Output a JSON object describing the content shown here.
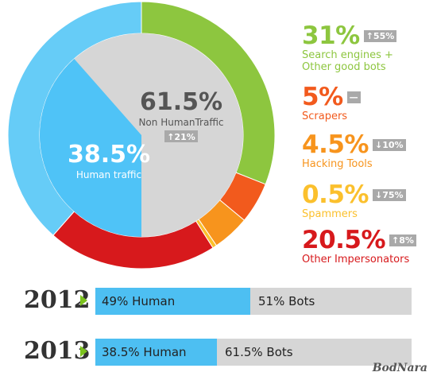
{
  "chart_data": {
    "type": "pie",
    "slices": [
      {
        "name": "Search engines + Other good bots",
        "value": 31,
        "color": "#8dc63f"
      },
      {
        "name": "Scrapers",
        "value": 5,
        "color": "#f25a1d"
      },
      {
        "name": "Hacking Tools",
        "value": 4.5,
        "color": "#f7941d"
      },
      {
        "name": "Spammers",
        "value": 0.5,
        "color": "#fbc02d"
      },
      {
        "name": "Other Impersonators",
        "value": 20.5,
        "color": "#d7191c"
      },
      {
        "name": "Human traffic",
        "value": 38.5,
        "color": "#4fc3f7"
      }
    ],
    "inner": {
      "non_human": {
        "pct": "61.5%",
        "label": "Non HumanTraffic",
        "delta": "↑21%",
        "value": 61.5,
        "color": "#d6d6d6"
      },
      "human": {
        "pct": "38.5%",
        "label": "Human traffic",
        "value": 38.5,
        "color": "#4fc3f7"
      }
    },
    "legend": [
      {
        "pct": "31%",
        "delta": "↑55%",
        "label_lines": [
          "Search engines +",
          "Other good bots"
        ],
        "color": "#8dc63f"
      },
      {
        "pct": "5%",
        "delta": "—",
        "label_lines": [
          "Scrapers"
        ],
        "color": "#f25a1d"
      },
      {
        "pct": "4.5%",
        "delta": "↓10%",
        "label_lines": [
          "Hacking Tools"
        ],
        "color": "#f7941d"
      },
      {
        "pct": "0.5%",
        "delta": "↓75%",
        "label_lines": [
          "Spammers"
        ],
        "color": "#fbc02d"
      },
      {
        "pct": "20.5%",
        "delta": "↑8%",
        "label_lines": [
          "Other Impersonators"
        ],
        "color": "#d7191c"
      }
    ],
    "years": [
      {
        "year": "2012",
        "human_label": "49% Human",
        "bots_label": "51% Bots",
        "human_pct": 49
      },
      {
        "year": "2013",
        "human_label": "38.5% Human",
        "bots_label": "61.5% Bots",
        "human_pct": 38.5
      }
    ]
  },
  "watermark": "BodNara"
}
